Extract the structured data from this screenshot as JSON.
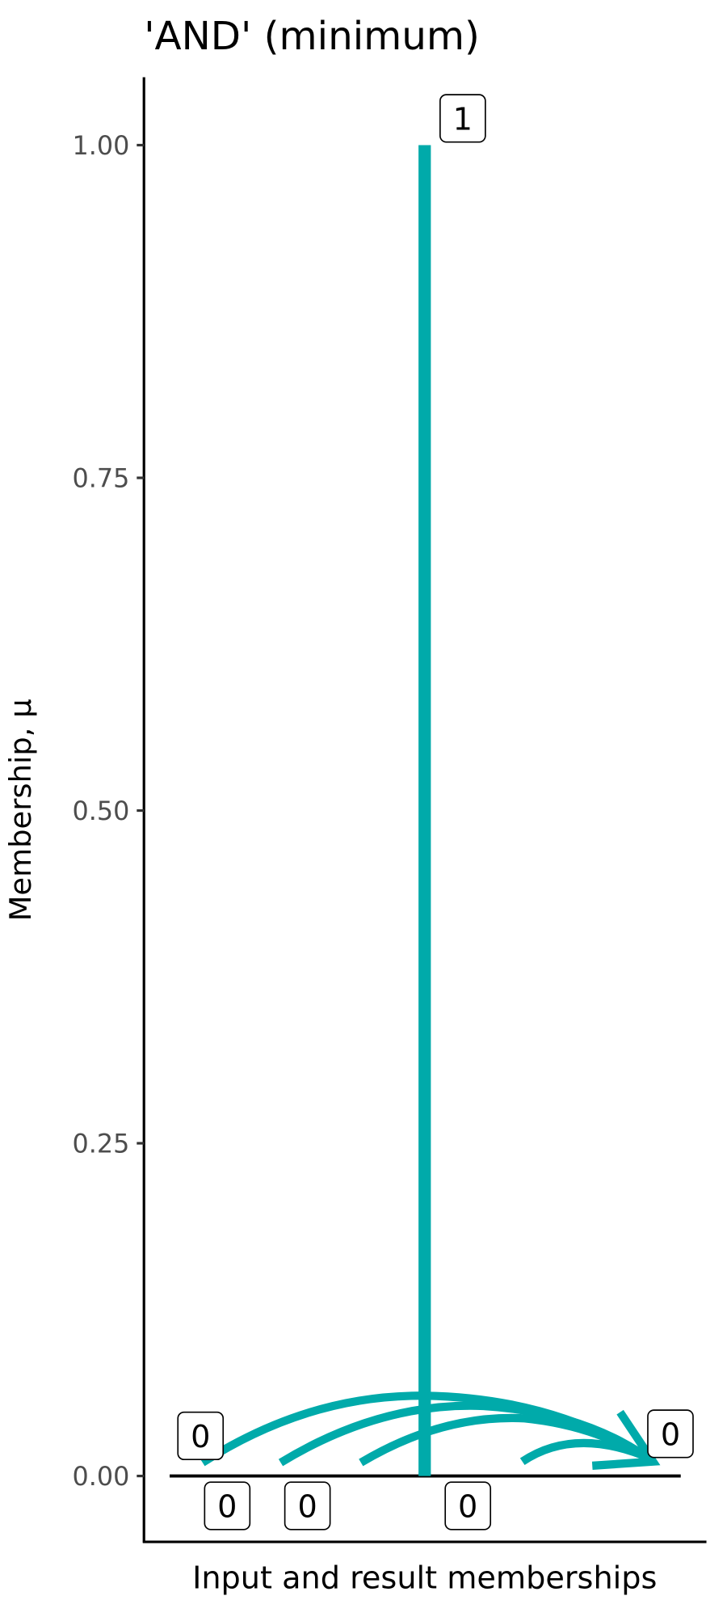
{
  "chart_data": {
    "type": "line",
    "title": "'AND' (minimum)",
    "xlabel": "Input and result memberships",
    "ylabel": "Membership, μ",
    "ylim": [
      -0.05,
      1.05
    ],
    "yticks": [
      "0.00",
      "0.25",
      "0.50",
      "0.75",
      "1.00"
    ],
    "ytick_values": [
      0,
      0.25,
      0.5,
      0.75,
      1
    ],
    "grid": false,
    "series_color": "#00AAAA",
    "inputs": [
      {
        "label": "0",
        "value": 0
      },
      {
        "label": "0",
        "value": 0
      },
      {
        "label": "0",
        "value": 0
      },
      {
        "label": "1",
        "value": 1
      },
      {
        "label": "0",
        "value": 0
      },
      {
        "label": "0",
        "value": 0
      }
    ],
    "result": {
      "label": "0",
      "value": 0
    }
  }
}
